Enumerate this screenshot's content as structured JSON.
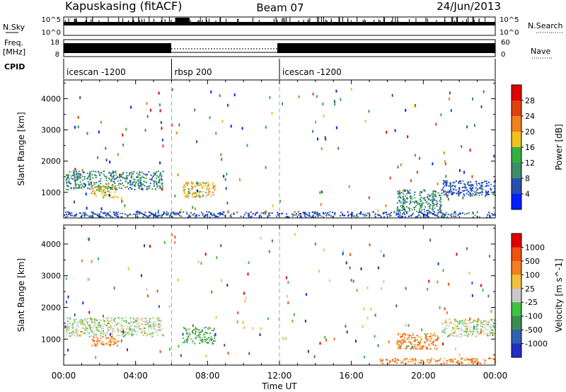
{
  "header": {
    "station": "Kapuskasing (fitACF)",
    "beam": "Beam 07",
    "date": "24/Jun/2013"
  },
  "strip_labels": {
    "nsky": "N.Sky",
    "nsearch": "N.Search",
    "freq_line1": "Freq.",
    "freq_line2": "[MHz]",
    "nave": "Nave",
    "cpid": "CPID",
    "ticks_left_top": [
      "10^5",
      "10^0"
    ],
    "ticks_right_top": [
      "10^5",
      "10^0"
    ],
    "ticks_left_freq": [
      "18",
      "8"
    ],
    "ticks_right_freq": [
      "60",
      "0"
    ]
  },
  "cpid_segments": [
    {
      "label": "icescan -1200",
      "start": 0,
      "end": 6
    },
    {
      "label": "rbsp 200",
      "start": 6,
      "end": 12
    },
    {
      "label": "icescan -1200",
      "start": 12,
      "end": 24
    }
  ],
  "x_axis": {
    "label": "Time UT",
    "ticks": [
      "00:00",
      "04:00",
      "08:00",
      "12:00",
      "16:00",
      "20:00",
      "00:00"
    ],
    "range_hours": [
      0,
      24
    ]
  },
  "chart_data": [
    {
      "type": "heatmap",
      "ylabel": "Slant Range [km]",
      "yticks": [
        1000,
        2000,
        3000,
        4000
      ],
      "ylim": [
        180,
        4600
      ],
      "colorbar": {
        "label": "Power [dB]",
        "ticks": [
          "4",
          "8",
          "12",
          "16",
          "20",
          "24",
          "28"
        ],
        "colors": [
          "#0020ff",
          "#2a4db0",
          "#3e8c6a",
          "#34b040",
          "#f0c020",
          "#f08020",
          "#e04010",
          "#e00000"
        ]
      },
      "regions": [
        {
          "t0": 0.1,
          "t1": 5.5,
          "r0": 1100,
          "r1": 1700,
          "color_index": 2
        },
        {
          "t0": 1.5,
          "t1": 3.0,
          "r0": 850,
          "r1": 1250,
          "color_index": 4
        },
        {
          "t0": 6.6,
          "t1": 8.4,
          "r0": 850,
          "r1": 1350,
          "color_index": 4
        },
        {
          "t0": 18.5,
          "t1": 21.0,
          "r0": 400,
          "r1": 1100,
          "color_index": 2
        },
        {
          "t0": 21.0,
          "t1": 24.0,
          "r0": 900,
          "r1": 1400,
          "color_index": 1
        },
        {
          "t0": 0.0,
          "t1": 24.0,
          "r0": 220,
          "r1": 400,
          "color_index": 1
        }
      ]
    },
    {
      "type": "heatmap",
      "ylabel": "Slant Range [km]",
      "yticks": [
        1000,
        2000,
        3000,
        4000
      ],
      "ylim": [
        180,
        4600
      ],
      "colorbar": {
        "label": "Velocity [m s^-1]",
        "ticks": [
          "1000",
          "500",
          "100",
          "25",
          "-25",
          "-100",
          "-500",
          "-1000"
        ],
        "colors": [
          "#2030c0",
          "#3060b0",
          "#3a8c50",
          "#40c040",
          "#c8c8c8",
          "#f0c040",
          "#f08020",
          "#f05010",
          "#e00000"
        ]
      },
      "regions": [
        {
          "t0": 0.1,
          "t1": 5.5,
          "r0": 1100,
          "r1": 1700,
          "color_index": 4
        },
        {
          "t0": 1.5,
          "t1": 3.0,
          "r0": 800,
          "r1": 1100,
          "color_index": 6
        },
        {
          "t0": 6.6,
          "t1": 8.4,
          "r0": 850,
          "r1": 1400,
          "color_index": 3
        },
        {
          "t0": 18.5,
          "t1": 20.8,
          "r0": 700,
          "r1": 1200,
          "color_index": 6
        },
        {
          "t0": 21.0,
          "t1": 24.0,
          "r0": 1100,
          "r1": 1650,
          "color_index": 4
        },
        {
          "t0": 17.5,
          "t1": 24.0,
          "r0": 250,
          "r1": 420,
          "color_index": 6
        }
      ]
    }
  ]
}
